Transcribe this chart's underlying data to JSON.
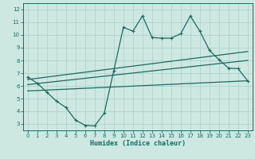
{
  "xlabel": "Humidex (Indice chaleur)",
  "ylabel": "",
  "bg_color": "#cce8e0",
  "line_color": "#1a6b60",
  "grid_color": "#aacfc8",
  "xlim": [
    -0.5,
    23.5
  ],
  "ylim": [
    2.5,
    12.5
  ],
  "xticks": [
    0,
    1,
    2,
    3,
    4,
    5,
    6,
    7,
    8,
    9,
    10,
    11,
    12,
    13,
    14,
    15,
    16,
    17,
    18,
    19,
    20,
    21,
    22,
    23
  ],
  "yticks": [
    3,
    4,
    5,
    6,
    7,
    8,
    9,
    10,
    11,
    12
  ],
  "line1_x": [
    0,
    1,
    2,
    3,
    4,
    5,
    6,
    7,
    8,
    9,
    10,
    11,
    12,
    13,
    14,
    15,
    16,
    17,
    18,
    19,
    20,
    21,
    22,
    23
  ],
  "line1_y": [
    6.7,
    6.2,
    5.5,
    4.8,
    4.3,
    3.3,
    2.9,
    2.85,
    3.85,
    7.2,
    10.6,
    10.3,
    11.5,
    9.8,
    9.75,
    9.75,
    10.1,
    11.5,
    10.3,
    8.8,
    8.05,
    7.4,
    7.35,
    6.4
  ],
  "line2_x": [
    0,
    23
  ],
  "line2_y": [
    6.5,
    8.7
  ],
  "line3_x": [
    0,
    23
  ],
  "line3_y": [
    6.1,
    8.0
  ],
  "line4_x": [
    0,
    23
  ],
  "line4_y": [
    5.6,
    6.4
  ]
}
